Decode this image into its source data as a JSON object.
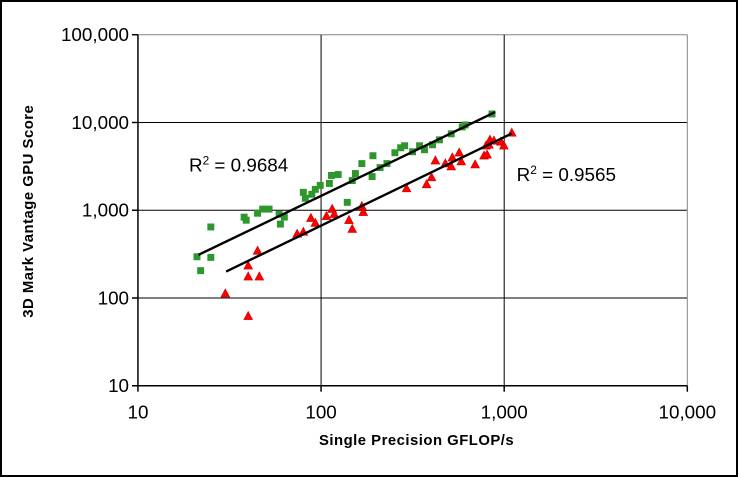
{
  "chart_data": {
    "type": "scatter",
    "title": "",
    "xlabel": "Single Precision GFLOP/s",
    "ylabel": "3D Mark Vantage GPU Score",
    "x_scale": "log",
    "y_scale": "log",
    "xlim": [
      10,
      10000
    ],
    "ylim": [
      10,
      100000
    ],
    "grid": {
      "show": true,
      "line_color": "#000000",
      "border_color": "#848484",
      "axis_color": "#000000"
    },
    "legend": "none",
    "x_ticks": [
      {
        "v": 10,
        "label": "10"
      },
      {
        "v": 100,
        "label": "100"
      },
      {
        "v": 1000,
        "label": "1,000"
      },
      {
        "v": 10000,
        "label": "10,000"
      }
    ],
    "y_ticks": [
      {
        "v": 10,
        "label": "10"
      },
      {
        "v": 100,
        "label": "100"
      },
      {
        "v": 1000,
        "label": "1,000"
      },
      {
        "v": 10000,
        "label": "10,000"
      },
      {
        "v": 100000,
        "label": "100,000"
      }
    ],
    "series": [
      {
        "name": "green-squares",
        "marker": "square",
        "color": "#2D972D",
        "r_squared": "0.9684",
        "trendline": {
          "x1": 21.4,
          "y1": 310,
          "x2": 893,
          "y2": 13150,
          "color": "#000000"
        },
        "points": [
          [
            21,
            295
          ],
          [
            25,
            290
          ],
          [
            22,
            205
          ],
          [
            25,
            645
          ],
          [
            38,
            835
          ],
          [
            39,
            770
          ],
          [
            45,
            925
          ],
          [
            48,
            1030
          ],
          [
            52,
            1030
          ],
          [
            59,
            900
          ],
          [
            60,
            695
          ],
          [
            63,
            835
          ],
          [
            80,
            1600
          ],
          [
            82,
            1370
          ],
          [
            89,
            1520
          ],
          [
            93,
            1730
          ],
          [
            99,
            1920
          ],
          [
            111,
            2020
          ],
          [
            114,
            2490
          ],
          [
            124,
            2550
          ],
          [
            139,
            1230
          ],
          [
            148,
            2180
          ],
          [
            154,
            2620
          ],
          [
            167,
            3400
          ],
          [
            190,
            2420
          ],
          [
            192,
            4180
          ],
          [
            210,
            3060
          ],
          [
            229,
            3400
          ],
          [
            253,
            4520
          ],
          [
            272,
            5150
          ],
          [
            286,
            5430
          ],
          [
            316,
            4640
          ],
          [
            345,
            5430
          ],
          [
            367,
            4890
          ],
          [
            406,
            5570
          ],
          [
            443,
            6340
          ],
          [
            514,
            7420
          ],
          [
            590,
            8900
          ],
          [
            612,
            9370
          ],
          [
            858,
            12500
          ]
        ]
      },
      {
        "name": "red-triangles",
        "marker": "triangle",
        "color": "#FF0000",
        "marker_edge": "#CC0000",
        "r_squared": "0.9565",
        "trendline": {
          "x1": 30.3,
          "y1": 200,
          "x2": 1100,
          "y2": 7500,
          "color": "#000000"
        },
        "points": [
          [
            40,
            62
          ],
          [
            30,
            112
          ],
          [
            40,
            175
          ],
          [
            46,
            175
          ],
          [
            40,
            233
          ],
          [
            45,
            344
          ],
          [
            74,
            536
          ],
          [
            80,
            565
          ],
          [
            88,
            812
          ],
          [
            93,
            713
          ],
          [
            107,
            855
          ],
          [
            115,
            1030
          ],
          [
            118,
            900
          ],
          [
            142,
            770
          ],
          [
            148,
            610
          ],
          [
            167,
            1110
          ],
          [
            170,
            950
          ],
          [
            293,
            1770
          ],
          [
            377,
            1970
          ],
          [
            401,
            2360
          ],
          [
            421,
            3670
          ],
          [
            477,
            3400
          ],
          [
            514,
            3140
          ],
          [
            521,
            3970
          ],
          [
            568,
            4520
          ],
          [
            583,
            3580
          ],
          [
            694,
            3310
          ],
          [
            776,
            4180
          ],
          [
            806,
            4290
          ],
          [
            796,
            5430
          ],
          [
            826,
            5570
          ],
          [
            836,
            6340
          ],
          [
            879,
            6180
          ],
          [
            959,
            6020
          ],
          [
            996,
            5430
          ],
          [
            1100,
            7610
          ]
        ]
      }
    ],
    "annotations": [
      {
        "base": "R",
        "exponent": "2",
        "rest": " = 0.9684",
        "x": 19,
        "y": 2760,
        "anchor": "start"
      },
      {
        "base": "R",
        "exponent": "2",
        "rest": " = 0.9565",
        "x": 1170,
        "y": 2150,
        "anchor": "start"
      }
    ]
  }
}
